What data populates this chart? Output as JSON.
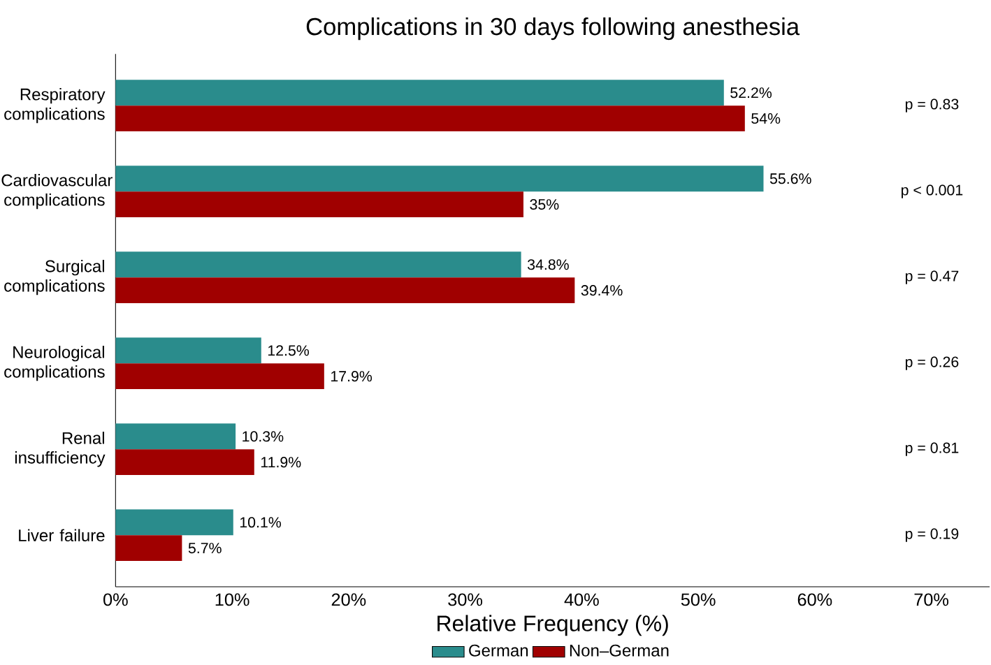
{
  "chart_data": {
    "type": "bar",
    "orientation": "horizontal",
    "title": "Complications in 30 days following anesthesia",
    "xlabel": "Relative Frequency (%)",
    "categories": [
      "Respiratory complications",
      "Cardiovascular complications",
      "Surgical complications",
      "Neurological complications",
      "Renal insufficiency",
      "Liver failure"
    ],
    "series": [
      {
        "name": "German",
        "color": "#2a8c8c",
        "values": [
          52.2,
          55.6,
          34.8,
          12.5,
          10.3,
          10.1
        ],
        "value_labels": [
          "52.2%",
          "55.6%",
          "34.8%",
          "12.5%",
          "10.3%",
          "10.1%"
        ]
      },
      {
        "name": "Non–German",
        "color": "#a00000",
        "values": [
          54,
          35,
          39.4,
          17.9,
          11.9,
          5.7
        ],
        "value_labels": [
          "54%",
          "35%",
          "39.4%",
          "17.9%",
          "11.9%",
          "5.7%"
        ]
      }
    ],
    "xlim": [
      0,
      75
    ],
    "xticks": [
      {
        "value": 0,
        "label": "0%"
      },
      {
        "value": 10,
        "label": "10%"
      },
      {
        "value": 20,
        "label": "20%"
      },
      {
        "value": 30,
        "label": "30%"
      },
      {
        "value": 40,
        "label": "40%"
      },
      {
        "value": 50,
        "label": "50%"
      },
      {
        "value": 60,
        "label": "60%"
      },
      {
        "value": 70,
        "label": "70%"
      }
    ],
    "annotations": [
      "p = 0.83",
      "p < 0.001",
      "p = 0.47",
      "p = 0.26",
      "p = 0.81",
      "p = 0.19"
    ],
    "legend": "bottom",
    "grid": false
  }
}
